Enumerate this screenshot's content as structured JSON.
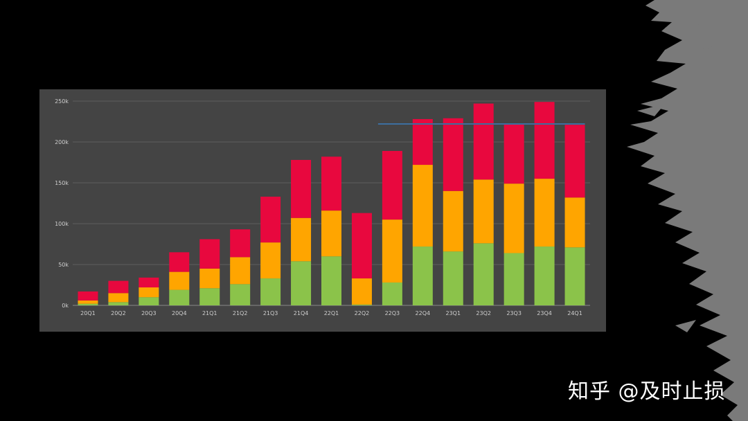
{
  "colors": {
    "background": "#000000",
    "panel": "#444444",
    "grid": "#5e5e5e",
    "axis_text": "#cfcfcf",
    "brush": "#7a7a7a",
    "reference_line": "#3c6fa0"
  },
  "watermark": "知乎 @及时止损",
  "chart_data": {
    "type": "bar",
    "stacked": true,
    "title": "",
    "xlabel": "",
    "ylabel": "",
    "ylim": [
      0,
      250000
    ],
    "yticks": [
      0,
      50000,
      100000,
      150000,
      200000,
      250000
    ],
    "ytick_labels": [
      "0k",
      "50k",
      "100k",
      "150k",
      "200k",
      "250k"
    ],
    "grid": true,
    "legend": "none",
    "categories": [
      "20Q1",
      "20Q2",
      "20Q3",
      "20Q4",
      "21Q1",
      "21Q2",
      "21Q3",
      "21Q4",
      "22Q1",
      "22Q2",
      "22Q3",
      "22Q4",
      "23Q1",
      "23Q2",
      "23Q3",
      "23Q4",
      "24Q1"
    ],
    "series": [
      {
        "color": "#8bc34a",
        "values": [
          2000,
          4000,
          10000,
          19000,
          21000,
          26000,
          33000,
          54000,
          60000,
          1000,
          28000,
          72000,
          66000,
          76000,
          64000,
          72000,
          71000
        ]
      },
      {
        "color": "#ffa500",
        "values": [
          4000,
          11000,
          12000,
          22000,
          24000,
          33000,
          44000,
          53000,
          56000,
          32000,
          77000,
          100000,
          74000,
          78000,
          85000,
          83000,
          61000
        ]
      },
      {
        "color": "#e8083e",
        "values": [
          11000,
          15000,
          12000,
          24000,
          36000,
          34000,
          56000,
          71000,
          66000,
          80000,
          84000,
          56000,
          89000,
          93000,
          73000,
          94000,
          89000
        ]
      }
    ],
    "reference_line": {
      "value": 222000,
      "from": "22Q3",
      "to": "24Q1"
    }
  }
}
